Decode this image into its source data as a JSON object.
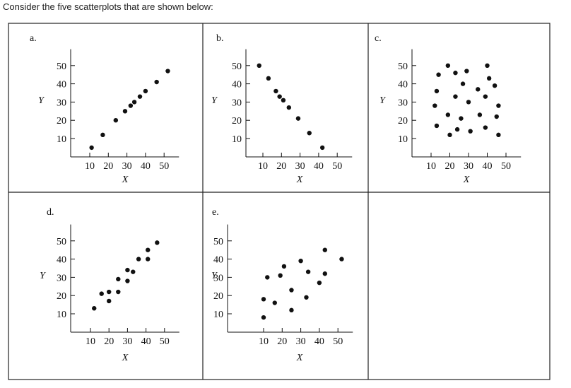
{
  "intro_text": "Consider the five scatterplots that are shown below:",
  "colors": {
    "ink": "#111111",
    "frame": "#222222",
    "background": "#ffffff"
  },
  "chart_data": [
    {
      "label": "a.",
      "type": "scatter",
      "xlabel": "X",
      "ylabel": "Y",
      "xticks": [
        10,
        20,
        30,
        40,
        50
      ],
      "yticks": [
        10,
        20,
        30,
        40,
        50
      ],
      "xlim": [
        5,
        55
      ],
      "ylim": [
        5,
        55
      ],
      "grid": false,
      "points": [
        [
          11,
          5
        ],
        [
          17,
          12
        ],
        [
          24,
          20
        ],
        [
          29,
          25
        ],
        [
          32,
          28
        ],
        [
          34,
          30
        ],
        [
          37,
          33
        ],
        [
          40,
          36
        ],
        [
          46,
          41
        ],
        [
          52,
          47
        ]
      ]
    },
    {
      "label": "b.",
      "type": "scatter",
      "xlabel": "X",
      "ylabel": "Y",
      "xticks": [
        10,
        20,
        30,
        40,
        50
      ],
      "yticks": [
        10,
        20,
        30,
        40,
        50
      ],
      "xlim": [
        5,
        55
      ],
      "ylim": [
        5,
        55
      ],
      "grid": false,
      "points": [
        [
          8,
          50
        ],
        [
          13,
          43
        ],
        [
          17,
          36
        ],
        [
          19,
          33
        ],
        [
          21,
          31
        ],
        [
          24,
          27
        ],
        [
          29,
          21
        ],
        [
          35,
          13
        ],
        [
          42,
          5
        ]
      ]
    },
    {
      "label": "c.",
      "type": "scatter",
      "xlabel": "X",
      "ylabel": "Y",
      "xticks": [
        10,
        20,
        30,
        40,
        50
      ],
      "yticks": [
        10,
        20,
        30,
        40,
        50
      ],
      "xlim": [
        5,
        55
      ],
      "ylim": [
        5,
        55
      ],
      "grid": false,
      "points": [
        [
          14,
          45
        ],
        [
          19,
          50
        ],
        [
          23,
          46
        ],
        [
          29,
          47
        ],
        [
          40,
          50
        ],
        [
          41,
          43
        ],
        [
          44,
          39
        ],
        [
          13,
          36
        ],
        [
          27,
          40
        ],
        [
          35,
          37
        ],
        [
          23,
          33
        ],
        [
          39,
          33
        ],
        [
          12,
          28
        ],
        [
          30,
          30
        ],
        [
          46,
          28
        ],
        [
          19,
          23
        ],
        [
          26,
          21
        ],
        [
          36,
          23
        ],
        [
          45,
          22
        ],
        [
          13,
          17
        ],
        [
          24,
          15
        ],
        [
          31,
          14
        ],
        [
          39,
          16
        ],
        [
          20,
          12
        ],
        [
          46,
          12
        ]
      ]
    },
    {
      "label": "d.",
      "type": "scatter",
      "xlabel": "X",
      "ylabel": "Y",
      "xticks": [
        10,
        20,
        30,
        40,
        50
      ],
      "yticks": [
        10,
        20,
        30,
        40,
        50
      ],
      "xlim": [
        5,
        55
      ],
      "ylim": [
        5,
        55
      ],
      "grid": false,
      "points": [
        [
          12,
          13
        ],
        [
          16,
          21
        ],
        [
          20,
          22
        ],
        [
          20,
          17
        ],
        [
          25,
          29
        ],
        [
          25,
          22
        ],
        [
          30,
          34
        ],
        [
          30,
          28
        ],
        [
          33,
          33
        ],
        [
          36,
          40
        ],
        [
          41,
          45
        ],
        [
          41,
          40
        ],
        [
          46,
          49
        ]
      ]
    },
    {
      "label": "e.",
      "type": "scatter",
      "xlabel": "X",
      "ylabel": "Y",
      "xticks": [
        10,
        20,
        30,
        40,
        50
      ],
      "yticks": [
        10,
        20,
        30,
        40,
        50
      ],
      "xlim": [
        5,
        55
      ],
      "ylim": [
        5,
        55
      ],
      "grid": false,
      "points": [
        [
          10,
          18
        ],
        [
          10,
          8
        ],
        [
          12,
          30
        ],
        [
          16,
          16
        ],
        [
          19,
          31
        ],
        [
          21,
          36
        ],
        [
          25,
          23
        ],
        [
          25,
          12
        ],
        [
          30,
          39
        ],
        [
          33,
          19
        ],
        [
          34,
          33
        ],
        [
          40,
          27
        ],
        [
          43,
          45
        ],
        [
          43,
          32
        ],
        [
          52,
          40
        ]
      ]
    }
  ]
}
